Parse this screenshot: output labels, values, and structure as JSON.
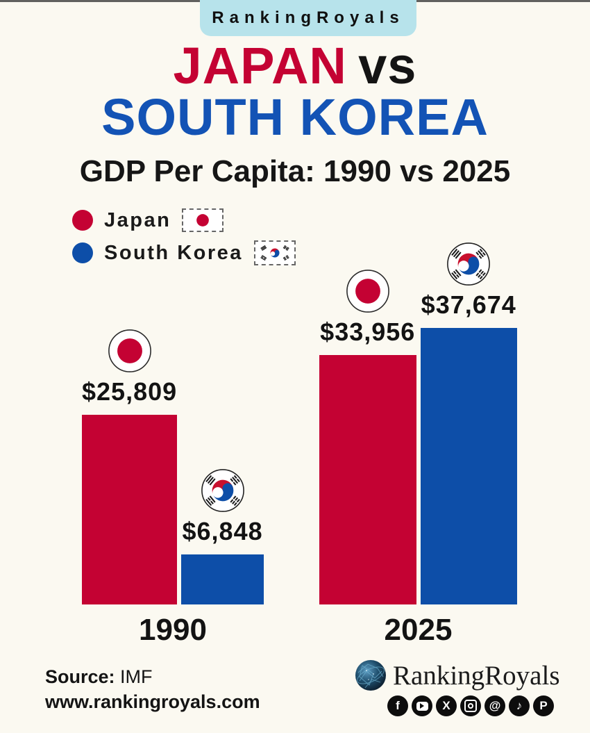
{
  "colors": {
    "background": "#FBF9F1",
    "banner_bg": "#B7E3EB",
    "japan_red": "#C40233",
    "korea_blue": "#0D4EA8",
    "title_blue": "#1353B5",
    "text_dark": "#131313"
  },
  "banner": {
    "brand": "RankingRoyals"
  },
  "title": {
    "part_red": "JAPAN",
    "part_black": "vs",
    "line2": "SOUTH KOREA"
  },
  "subtitle": "GDP Per Capita: 1990 vs 2025",
  "legend": {
    "items": [
      {
        "label": "Japan",
        "color": "#C40233",
        "flag": "japan-flag-icon"
      },
      {
        "label": "South Korea",
        "color": "#0D4EA8",
        "flag": "south-korea-flag-icon"
      }
    ]
  },
  "chart_data": {
    "type": "bar",
    "categories": [
      "1990",
      "2025"
    ],
    "series": [
      {
        "name": "Japan",
        "color": "#C40233",
        "values": [
          25809,
          33956
        ],
        "labels": [
          "$25,809",
          "$33,956"
        ]
      },
      {
        "name": "South Korea",
        "color": "#0D4EA8",
        "values": [
          6848,
          37674
        ],
        "labels": [
          "$6,848",
          "$37,674"
        ]
      }
    ],
    "title": "GDP Per Capita: 1990 vs 2025",
    "xlabel": "",
    "ylabel": "",
    "ylim": [
      0,
      40000
    ],
    "grid": false,
    "legend_position": "top-left",
    "value_prefix": "$"
  },
  "footer": {
    "source_label": "Source:",
    "source_value": "IMF",
    "website": "www.rankingroyals.com",
    "brand": "RankingRoyals",
    "social": [
      {
        "name": "facebook",
        "glyph": "f"
      },
      {
        "name": "youtube",
        "css": "youtube"
      },
      {
        "name": "x",
        "glyph": "X"
      },
      {
        "name": "instagram",
        "css": "instagram"
      },
      {
        "name": "threads",
        "glyph": "@"
      },
      {
        "name": "tiktok",
        "glyph": "♪"
      },
      {
        "name": "pinterest",
        "glyph": "P"
      }
    ]
  }
}
